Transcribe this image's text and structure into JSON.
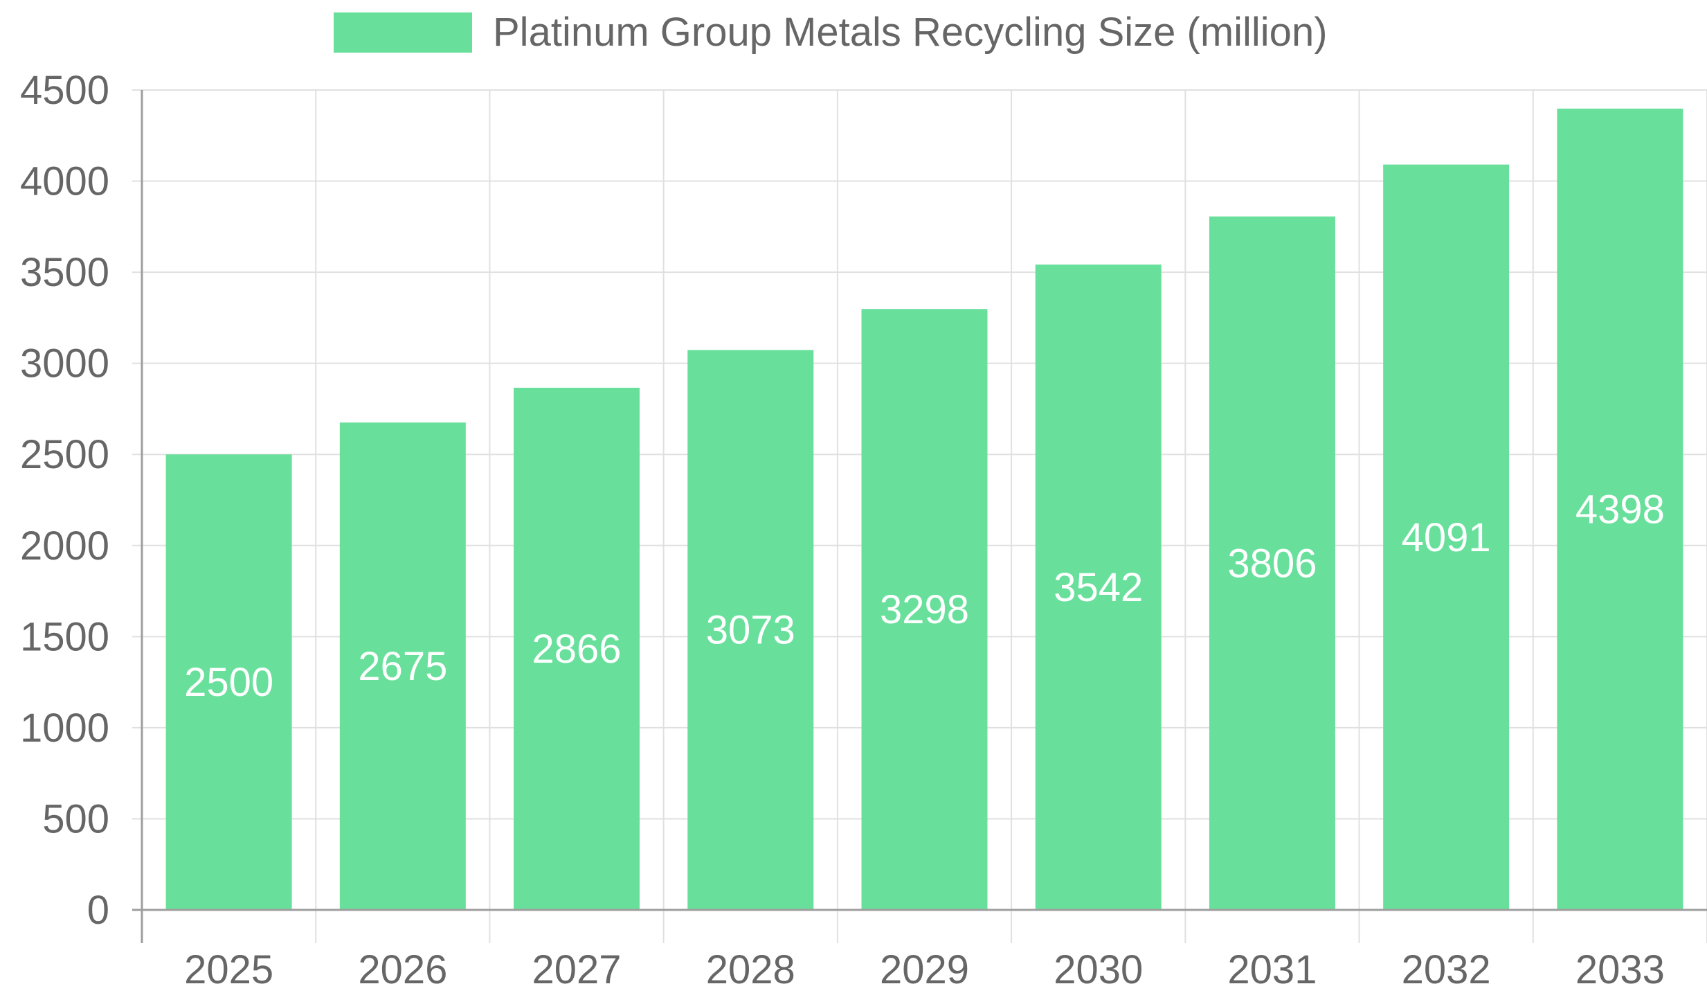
{
  "chart_data": {
    "type": "bar",
    "categories": [
      "2025",
      "2026",
      "2027",
      "2028",
      "2029",
      "2030",
      "2031",
      "2032",
      "2033"
    ],
    "series": [
      {
        "name": "Platinum Group Metals Recycling Size (million)",
        "values": [
          2500,
          2675,
          2866,
          3073,
          3298,
          3542,
          3806,
          4091,
          4398
        ],
        "color": "#68e09b"
      }
    ],
    "title": "",
    "xlabel": "",
    "ylabel": "",
    "ylim": [
      0,
      4500
    ],
    "yticks": [
      0,
      500,
      1000,
      1500,
      2000,
      2500,
      3000,
      3500,
      4000,
      4500
    ],
    "grid": true,
    "legend": "top-center",
    "data_labels": true,
    "colors": {
      "grid": "#e0e0e0",
      "axis": "#9e9e9e",
      "text": "#666666",
      "label": "#ffffff"
    }
  }
}
